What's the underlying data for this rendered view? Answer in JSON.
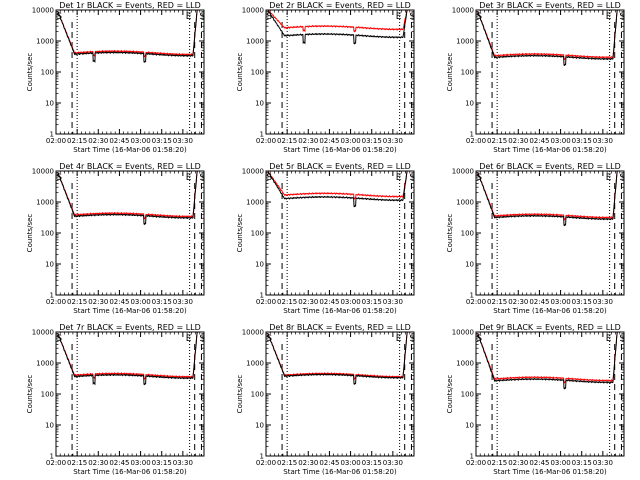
{
  "figure": {
    "x_start_hours": 2.0,
    "x_end_hours": 3.75,
    "x_tick_labels": [
      "02:00",
      "02:15",
      "02:30",
      "02:45",
      "03:00",
      "03:15",
      "03:30"
    ],
    "y_tick_labels": [
      "1",
      "10",
      "100",
      "1000",
      "10000"
    ],
    "y_scale": "log",
    "ylim": [
      1,
      10000
    ],
    "ylabel": "Counts/sec",
    "colors": {
      "events": "#000000",
      "lld": "#ff0000"
    }
  },
  "chart_data": [
    {
      "type": "line",
      "title": "Det 1r  BLACK = Events, RED = LLD",
      "xlabel": "Start Time (16-Mar-06 01:58:20)",
      "markers": {
        "S": 2.005,
        "E": 3.64,
        "S2": 3.695
      },
      "dash_lines": [
        2.19,
        3.64,
        3.72
      ],
      "dot_lines": [
        2.25,
        3.58
      ],
      "events_level": 380,
      "lld_level": 420,
      "dips": [
        2.45,
        3.05
      ],
      "series": [
        {
          "name": "Events",
          "color": "#000000"
        },
        {
          "name": "LLD",
          "color": "#ff0000"
        }
      ]
    },
    {
      "type": "line",
      "title": "Det 2r  BLACK = Events, RED = LLD",
      "xlabel": "Start Time (16-Mar-06 01:58:20)",
      "markers": {
        "S": 2.005,
        "E": 3.64,
        "S2": 3.695
      },
      "dash_lines": [
        2.19,
        3.64,
        3.72
      ],
      "dot_lines": [
        2.25,
        3.58
      ],
      "events_level": 1500,
      "lld_level": 2700,
      "dips": [
        2.45,
        3.05
      ],
      "series": [
        {
          "name": "Events",
          "color": "#000000"
        },
        {
          "name": "LLD",
          "color": "#ff0000"
        }
      ]
    },
    {
      "type": "line",
      "title": "Det 3r  BLACK = Events, RED = LLD",
      "xlabel": "Start Time (16-Mar-06 01:58:20)",
      "markers": {
        "S": 2.005,
        "E": 3.64,
        "S2": 3.695
      },
      "dash_lines": [
        2.19,
        3.64,
        3.72
      ],
      "dot_lines": [
        2.25,
        3.58
      ],
      "events_level": 300,
      "lld_level": 340,
      "dips": [
        3.05
      ],
      "series": [
        {
          "name": "Events",
          "color": "#000000"
        },
        {
          "name": "LLD",
          "color": "#ff0000"
        }
      ]
    },
    {
      "type": "line",
      "title": "Det 4r  BLACK = Events, RED = LLD",
      "xlabel": "Start Time (16-Mar-06 01:58:20)",
      "markers": {
        "S": 2.005,
        "E": 3.64,
        "S2": 3.695
      },
      "dash_lines": [
        2.19,
        3.64,
        3.72
      ],
      "dot_lines": [
        2.25,
        3.58
      ],
      "events_level": 350,
      "lld_level": 390,
      "dips": [
        3.05
      ],
      "series": [
        {
          "name": "Events",
          "color": "#000000"
        },
        {
          "name": "LLD",
          "color": "#ff0000"
        }
      ]
    },
    {
      "type": "line",
      "title": "Det 5r  BLACK = Events, RED = LLD",
      "xlabel": "Start Time (16-Mar-06 01:58:20)",
      "markers": {
        "S": 2.005,
        "E": 3.64,
        "S2": 3.695
      },
      "dash_lines": [
        2.19,
        3.64,
        3.72
      ],
      "dot_lines": [
        2.25,
        3.58
      ],
      "events_level": 1300,
      "lld_level": 1700,
      "dips": [
        3.05
      ],
      "series": [
        {
          "name": "Events",
          "color": "#000000"
        },
        {
          "name": "LLD",
          "color": "#ff0000"
        }
      ]
    },
    {
      "type": "line",
      "title": "Det 6r  BLACK = Events, RED = LLD",
      "xlabel": "Start Time (16-Mar-06 01:58:20)",
      "markers": {
        "S": 2.005,
        "E": 3.64,
        "S2": 3.695
      },
      "dash_lines": [
        2.19,
        3.64,
        3.72
      ],
      "dot_lines": [
        2.25,
        3.58
      ],
      "events_level": 320,
      "lld_level": 360,
      "dips": [
        3.05
      ],
      "series": [
        {
          "name": "Events",
          "color": "#000000"
        },
        {
          "name": "LLD",
          "color": "#ff0000"
        }
      ]
    },
    {
      "type": "line",
      "title": "Det 7r  BLACK = Events, RED = LLD",
      "xlabel": "Start Time (16-Mar-06 01:58:20)",
      "markers": {
        "S": 2.005,
        "E": 3.64,
        "S2": 3.695
      },
      "dash_lines": [
        2.19,
        3.64,
        3.72
      ],
      "dot_lines": [
        2.25,
        3.58
      ],
      "events_level": 370,
      "lld_level": 410,
      "dips": [
        2.45,
        3.05
      ],
      "series": [
        {
          "name": "Events",
          "color": "#000000"
        },
        {
          "name": "LLD",
          "color": "#ff0000"
        }
      ]
    },
    {
      "type": "line",
      "title": "Det 8r  BLACK = Events, RED = LLD",
      "xlabel": "Start Time (16-Mar-06 01:58:20)",
      "markers": {
        "S": 2.005,
        "E": 3.64,
        "S2": 3.695
      },
      "dash_lines": [
        2.19,
        3.64,
        3.72
      ],
      "dot_lines": [
        2.25,
        3.58
      ],
      "events_level": 380,
      "lld_level": 410,
      "dips": [
        3.05
      ],
      "series": [
        {
          "name": "Events",
          "color": "#000000"
        },
        {
          "name": "LLD",
          "color": "#ff0000"
        }
      ]
    },
    {
      "type": "line",
      "title": "Det 9r  BLACK = Events, RED = LLD",
      "xlabel": "Start Time (16-Mar-06 01:58:20)",
      "markers": {
        "S": 2.005,
        "E": 3.64,
        "S2": 3.695
      },
      "dash_lines": [
        2.19,
        3.64,
        3.72
      ],
      "dot_lines": [
        2.25,
        3.58
      ],
      "events_level": 270,
      "lld_level": 310,
      "dips": [
        3.05
      ],
      "series": [
        {
          "name": "Events",
          "color": "#000000"
        },
        {
          "name": "LLD",
          "color": "#ff0000"
        }
      ]
    }
  ]
}
